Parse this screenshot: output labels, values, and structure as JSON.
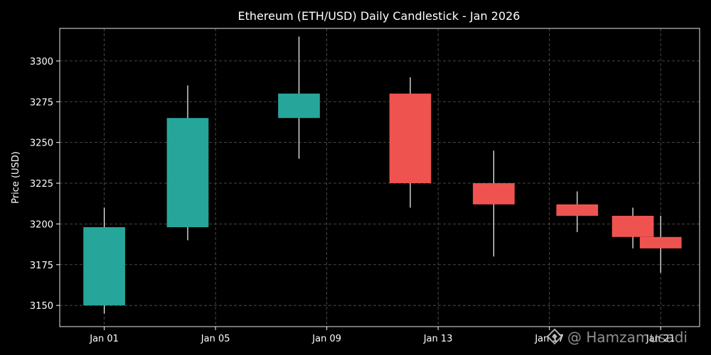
{
  "chart_data": {
    "type": "candlestick",
    "title": "Ethereum (ETH/USD) Daily Candlestick - Jan 2026",
    "xlabel": "",
    "ylabel": "Price (USD)",
    "ylim": [
      3137,
      3320
    ],
    "xlim_days": [
      -1.6,
      21.4
    ],
    "y_ticks": [
      3150,
      3175,
      3200,
      3225,
      3250,
      3275,
      3300
    ],
    "x_ticks": [
      {
        "day": 0,
        "label": "Jan 01"
      },
      {
        "day": 4,
        "label": "Jan 05"
      },
      {
        "day": 8,
        "label": "Jan 09"
      },
      {
        "day": 12,
        "label": "Jan 13"
      },
      {
        "day": 16,
        "label": "Jan 17"
      },
      {
        "day": 20,
        "label": "Jan 21"
      }
    ],
    "grid": true,
    "colors": {
      "up": "#26a69a",
      "down": "#ef5350",
      "wick": "#ffffff",
      "background": "#000000",
      "grid": "#5a5a5a"
    },
    "candles": [
      {
        "date": "Jan 01",
        "day": 0,
        "open": 3150,
        "high": 3210,
        "low": 3145,
        "close": 3198
      },
      {
        "date": "Jan 04",
        "day": 3,
        "open": 3198,
        "high": 3285,
        "low": 3190,
        "close": 3265
      },
      {
        "date": "Jan 08",
        "day": 7,
        "open": 3265,
        "high": 3315,
        "low": 3240,
        "close": 3280
      },
      {
        "date": "Jan 12",
        "day": 11,
        "open": 3280,
        "high": 3290,
        "low": 3210,
        "close": 3225
      },
      {
        "date": "Jan 15",
        "day": 14,
        "open": 3225,
        "high": 3245,
        "low": 3180,
        "close": 3212
      },
      {
        "date": "Jan 18",
        "day": 17,
        "open": 3212,
        "high": 3220,
        "low": 3195,
        "close": 3205
      },
      {
        "date": "Jan 20",
        "day": 19,
        "open": 3205,
        "high": 3210,
        "low": 3185,
        "close": 3192
      },
      {
        "date": "Jan 21",
        "day": 20,
        "open": 3192,
        "high": 3205,
        "low": 3170,
        "close": 3185
      }
    ]
  },
  "watermark": {
    "icon": "diamond-logo-icon",
    "text": "@ Hamzamusadi"
  }
}
